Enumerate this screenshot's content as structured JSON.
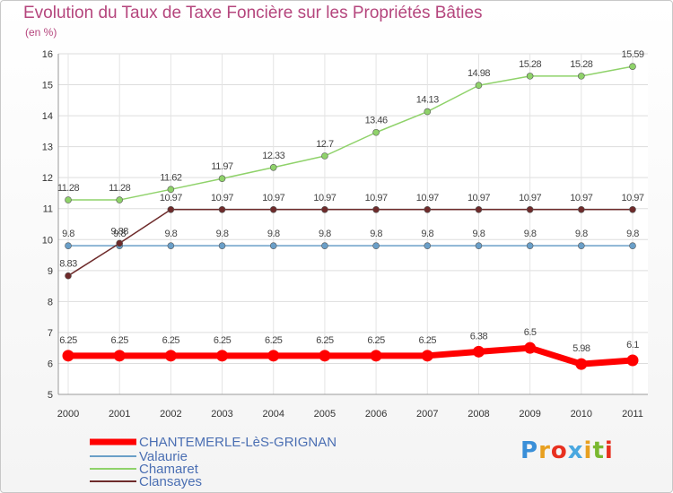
{
  "chart_data": {
    "type": "line",
    "title": "Evolution du Taux de Taxe Foncière sur les Propriétés Bâties",
    "subtitle": "(en %)",
    "x": [
      "2000",
      "2001",
      "2002",
      "2003",
      "2004",
      "2005",
      "2006",
      "2007",
      "2008",
      "2009",
      "2010",
      "2011"
    ],
    "ylim": [
      5,
      16
    ],
    "yticks": [
      5,
      6,
      7,
      8,
      9,
      10,
      11,
      12,
      13,
      14,
      15,
      16
    ],
    "grid": true,
    "legend_position": "bottom-left",
    "series": [
      {
        "name": "CHANTEMERLE-LèS-GRIGNAN",
        "color": "#ff0000",
        "values": [
          6.25,
          6.25,
          6.25,
          6.25,
          6.25,
          6.25,
          6.25,
          6.25,
          6.38,
          6.5,
          5.98,
          6.1
        ],
        "labels": [
          "6.25",
          "6.25",
          "6.25",
          "6.25",
          "6.25",
          "6.25",
          "6.25",
          "6.25",
          "6.38",
          "6.5",
          "5.98",
          "6.1"
        ]
      },
      {
        "name": "Valaurie",
        "color": "#6a9fc8",
        "values": [
          9.8,
          9.8,
          9.8,
          9.8,
          9.8,
          9.8,
          9.8,
          9.8,
          9.8,
          9.8,
          9.8,
          9.8
        ],
        "labels": [
          "9.8",
          "9.8",
          "9.8",
          "9.8",
          "9.8",
          "9.8",
          "9.8",
          "9.8",
          "9.8",
          "9.8",
          "9.8",
          "9.8"
        ]
      },
      {
        "name": "Chamaret",
        "color": "#8fd26a",
        "values": [
          11.28,
          11.28,
          11.62,
          11.97,
          12.33,
          12.7,
          13.46,
          14.13,
          14.98,
          15.28,
          15.28,
          15.59
        ],
        "labels": [
          "11.28",
          "11.28",
          "11.62",
          "11.97",
          "12.33",
          "12.7",
          "13.46",
          "14.13",
          "14.98",
          "15.28",
          "15.28",
          "15.59"
        ]
      },
      {
        "name": "Clansayes",
        "color": "#6e2b2b",
        "values": [
          8.83,
          9.88,
          10.97,
          10.97,
          10.97,
          10.97,
          10.97,
          10.97,
          10.97,
          10.97,
          10.97,
          10.97
        ],
        "labels": [
          "8.83",
          "9.88",
          "10.97",
          "10.97",
          "10.97",
          "10.97",
          "10.97",
          "10.97",
          "10.97",
          "10.97",
          "10.97",
          "10.97"
        ]
      }
    ]
  },
  "logo": {
    "text": "Proxiti"
  }
}
